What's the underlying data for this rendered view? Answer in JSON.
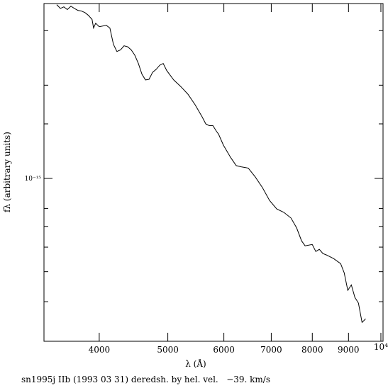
{
  "chart_data": {
    "type": "line",
    "xlabel": "λ (Å)",
    "ylabel": "fλ (arbitrary units)",
    "caption": "sn1995j IIb (1993 03 31) deredsh. by hel. vel.   −39. km/s",
    "xlog": true,
    "ylog": true,
    "color": "#000000",
    "xlim": [
      3342,
      10070
    ],
    "ylim": [
      2.98e-16,
      3.67e-15
    ],
    "xticks": [
      4000,
      5000,
      6000,
      7000,
      8000,
      9000,
      {
        "value": 10000,
        "label": "10⁴"
      }
    ],
    "yticks": [
      {
        "value": 1e-15,
        "label": "10⁻¹⁵"
      }
    ],
    "yminorticks": [
      3e-15,
      2e-15,
      1.5e-15,
      8e-16,
      7e-16,
      6e-16,
      5e-16,
      4e-16
    ],
    "x": [
      3484,
      3525,
      3565,
      3606,
      3648,
      3690,
      3731,
      3775,
      3819,
      3863,
      3908,
      3927,
      3954,
      4000,
      4093,
      4141,
      4189,
      4237,
      4287,
      4337,
      4388,
      4439,
      4490,
      4543,
      4596,
      4650,
      4704,
      4758,
      4814,
      4870,
      4926,
      4982,
      5097,
      5215,
      5339,
      5464,
      5591,
      5657,
      5723,
      5790,
      5857,
      5897,
      5991,
      6131,
      6246,
      6347,
      6495,
      6647,
      6802,
      6962,
      7125,
      7292,
      7463,
      7602,
      7724,
      7814,
      7998,
      8091,
      8185,
      8281,
      8377,
      8573,
      8773,
      8874,
      8978,
      9083,
      9189,
      9296,
      9405,
      9514
    ],
    "values": [
      3.64e-15,
      3.54e-15,
      3.58e-15,
      3.51e-15,
      3.6e-15,
      3.54e-15,
      3.49e-15,
      3.47e-15,
      3.43e-15,
      3.36e-15,
      3.26e-15,
      3.06e-15,
      3.17e-15,
      3.09e-15,
      3.12e-15,
      3.06e-15,
      2.71e-15,
      2.57e-15,
      2.6e-15,
      2.68e-15,
      2.66e-15,
      2.6e-15,
      2.5e-15,
      2.35e-15,
      2.17e-15,
      2.08e-15,
      2.09e-15,
      2.2e-15,
      2.25e-15,
      2.32e-15,
      2.35e-15,
      2.23e-15,
      2.08e-15,
      1.98e-15,
      1.87e-15,
      1.73e-15,
      1.58e-15,
      1.5e-15,
      1.48e-15,
      1.48e-15,
      1.42e-15,
      1.39e-15,
      1.28e-15,
      1.17e-15,
      1.1e-15,
      1.09e-15,
      1.08e-15,
      1.01e-15,
      9.34e-16,
      8.49e-16,
      7.97e-16,
      7.77e-16,
      7.45e-16,
      6.92e-16,
      6.29e-16,
      6.06e-16,
      6.12e-16,
      5.81e-16,
      5.9e-16,
      5.72e-16,
      5.66e-16,
      5.51e-16,
      5.31e-16,
      4.96e-16,
      4.35e-16,
      4.53e-16,
      4.13e-16,
      3.96e-16,
      3.43e-16,
      3.52e-16
    ]
  }
}
